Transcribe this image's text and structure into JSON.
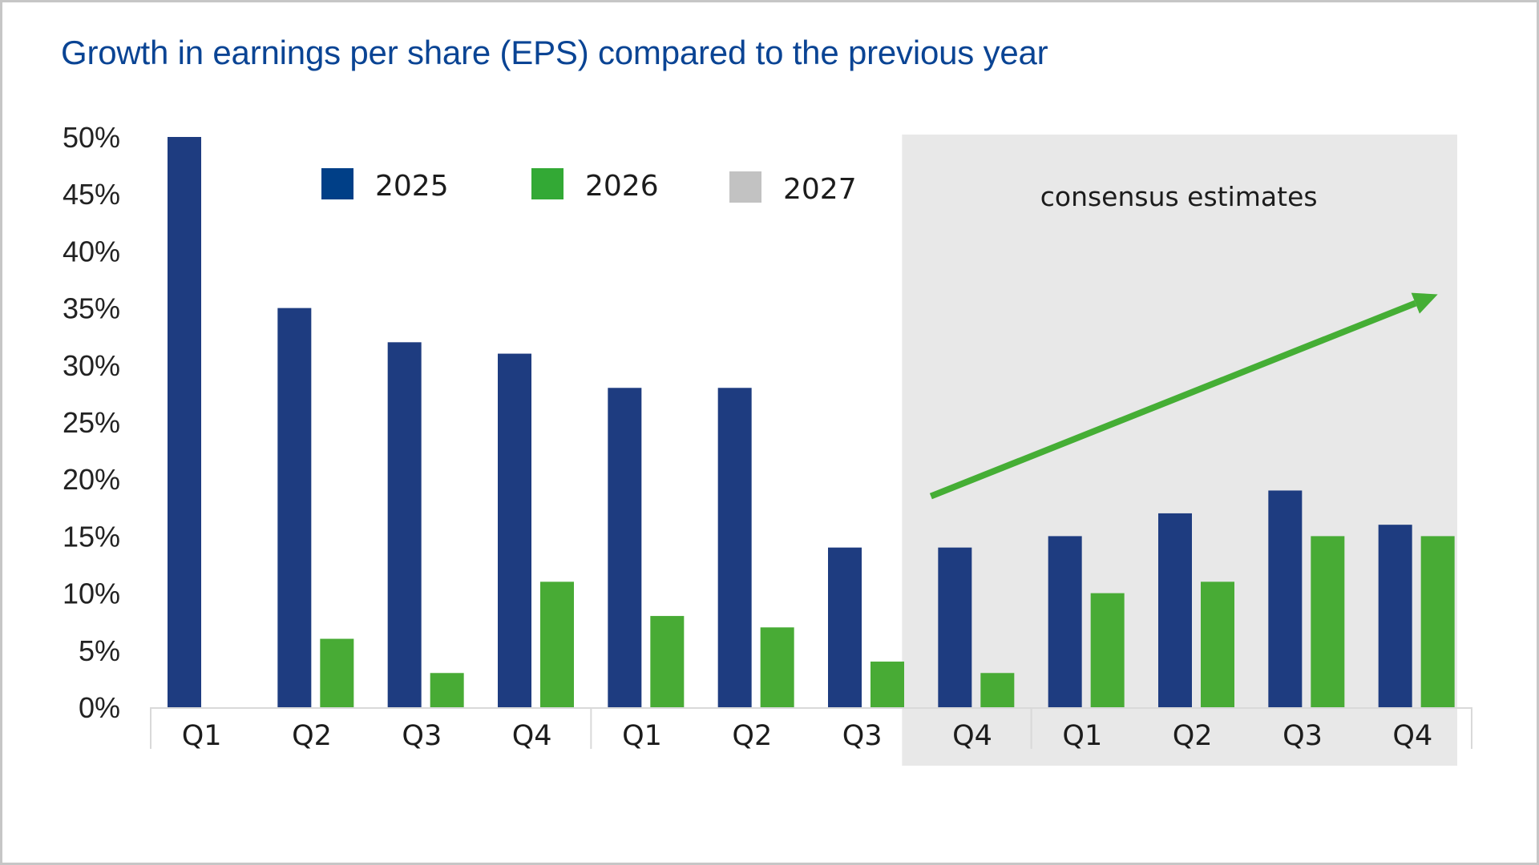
{
  "title": "Growth in earnings per share (EPS) compared to the previous year",
  "colors": {
    "title": "#0a4494",
    "series_2025": "#1e3c80",
    "series_2026": "#48ab35",
    "legend_2025": "#003f87",
    "legend_2026": "#33a935",
    "legend_2027": "#c2c2c2",
    "estimate_band": "#e8e8e8",
    "arrow": "#45ae35",
    "axis": "#d9d9d9"
  },
  "chart_data": {
    "type": "bar",
    "title": "Growth in earnings per share (EPS) compared to the previous year",
    "xlabel": "",
    "ylabel": "",
    "ylim": [
      0,
      50
    ],
    "yticks": [
      0,
      5,
      10,
      15,
      20,
      25,
      30,
      35,
      40,
      45,
      50
    ],
    "ytick_labels": [
      "0%",
      "5%",
      "10%",
      "15%",
      "20%",
      "25%",
      "30%",
      "35%",
      "40%",
      "45%",
      "50%"
    ],
    "grid": false,
    "legend_position": "top",
    "legend": [
      {
        "name": "2025",
        "color_key": "legend_2025"
      },
      {
        "name": "2026",
        "color_key": "legend_2026"
      },
      {
        "name": "2027",
        "color_key": "legend_2027"
      }
    ],
    "groups": [
      "2025",
      "2026",
      "2027"
    ],
    "categories": [
      "Q1",
      "Q2",
      "Q3",
      "Q4",
      "Q1",
      "Q2",
      "Q3",
      "Q4",
      "Q1",
      "Q2",
      "Q3",
      "Q4"
    ],
    "series": [
      {
        "name": "blue series",
        "color_key": "series_2025",
        "values": [
          50,
          35,
          32,
          31,
          28,
          28,
          14,
          14,
          15,
          17,
          19,
          16
        ]
      },
      {
        "name": "green series",
        "color_key": "series_2026",
        "values": [
          null,
          6,
          3,
          11,
          8,
          7,
          4,
          3,
          10,
          11,
          15,
          15
        ]
      }
    ],
    "annotations": [
      {
        "type": "shaded-band",
        "text": "consensus estimates",
        "from_category_index": 7,
        "to_category_index": 11
      },
      {
        "type": "arrow",
        "meaning": "upward trend",
        "from": {
          "category_index": 7,
          "value": 18.5
        },
        "to": {
          "category_index": 11,
          "value": 36.2
        }
      }
    ]
  }
}
